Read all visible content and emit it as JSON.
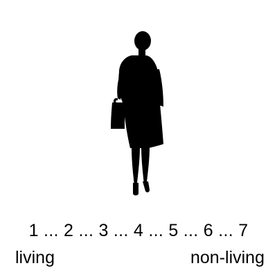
{
  "stimulus": {
    "image": "woman-silhouette-icon"
  },
  "rating_scale": {
    "points_text": "1 ... 2 ... 3 ... 4 ... 5 ... 6 ... 7",
    "left_anchor": "living",
    "right_anchor": "non-living"
  },
  "colors": {
    "foreground": "#000000",
    "background": "#ffffff"
  }
}
